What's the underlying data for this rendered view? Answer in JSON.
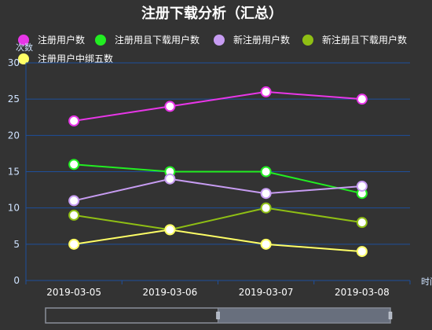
{
  "chart_data": {
    "type": "line",
    "title": "注册下载分析（汇总）",
    "ylabel": "次数",
    "xlabel": "时间",
    "categories": [
      "2019-03-05",
      "2019-03-06",
      "2019-03-07",
      "2019-03-08"
    ],
    "ylim": [
      0,
      30
    ],
    "yticks": [
      0,
      5,
      10,
      15,
      20,
      25,
      30
    ],
    "grid": "horizontal",
    "legend_position": "top",
    "series": [
      {
        "name": "注册用户数",
        "color": "#e836e8",
        "values": [
          22,
          24,
          26,
          25
        ]
      },
      {
        "name": "注册用且下载用户数",
        "color": "#22ee22",
        "values": [
          16,
          15,
          15,
          12
        ]
      },
      {
        "name": "新注册用户数",
        "color": "#c79cf2",
        "values": [
          11,
          14,
          12,
          13
        ]
      },
      {
        "name": "新注册且下载用户数",
        "color": "#8fbf14",
        "values": [
          9,
          7,
          10,
          8
        ]
      },
      {
        "name": "注册用户中绑五数",
        "color": "#ffff66",
        "values": [
          5,
          7,
          5,
          4
        ]
      }
    ]
  },
  "data_zoom": {
    "start_fraction": 0.5,
    "end_fraction": 1.0
  },
  "colors": {
    "background": "#333333",
    "axis": "#1e4f9c",
    "grid": "#1e4f9c",
    "text": "#ffffff",
    "axis_label": "#cfe3ff"
  }
}
